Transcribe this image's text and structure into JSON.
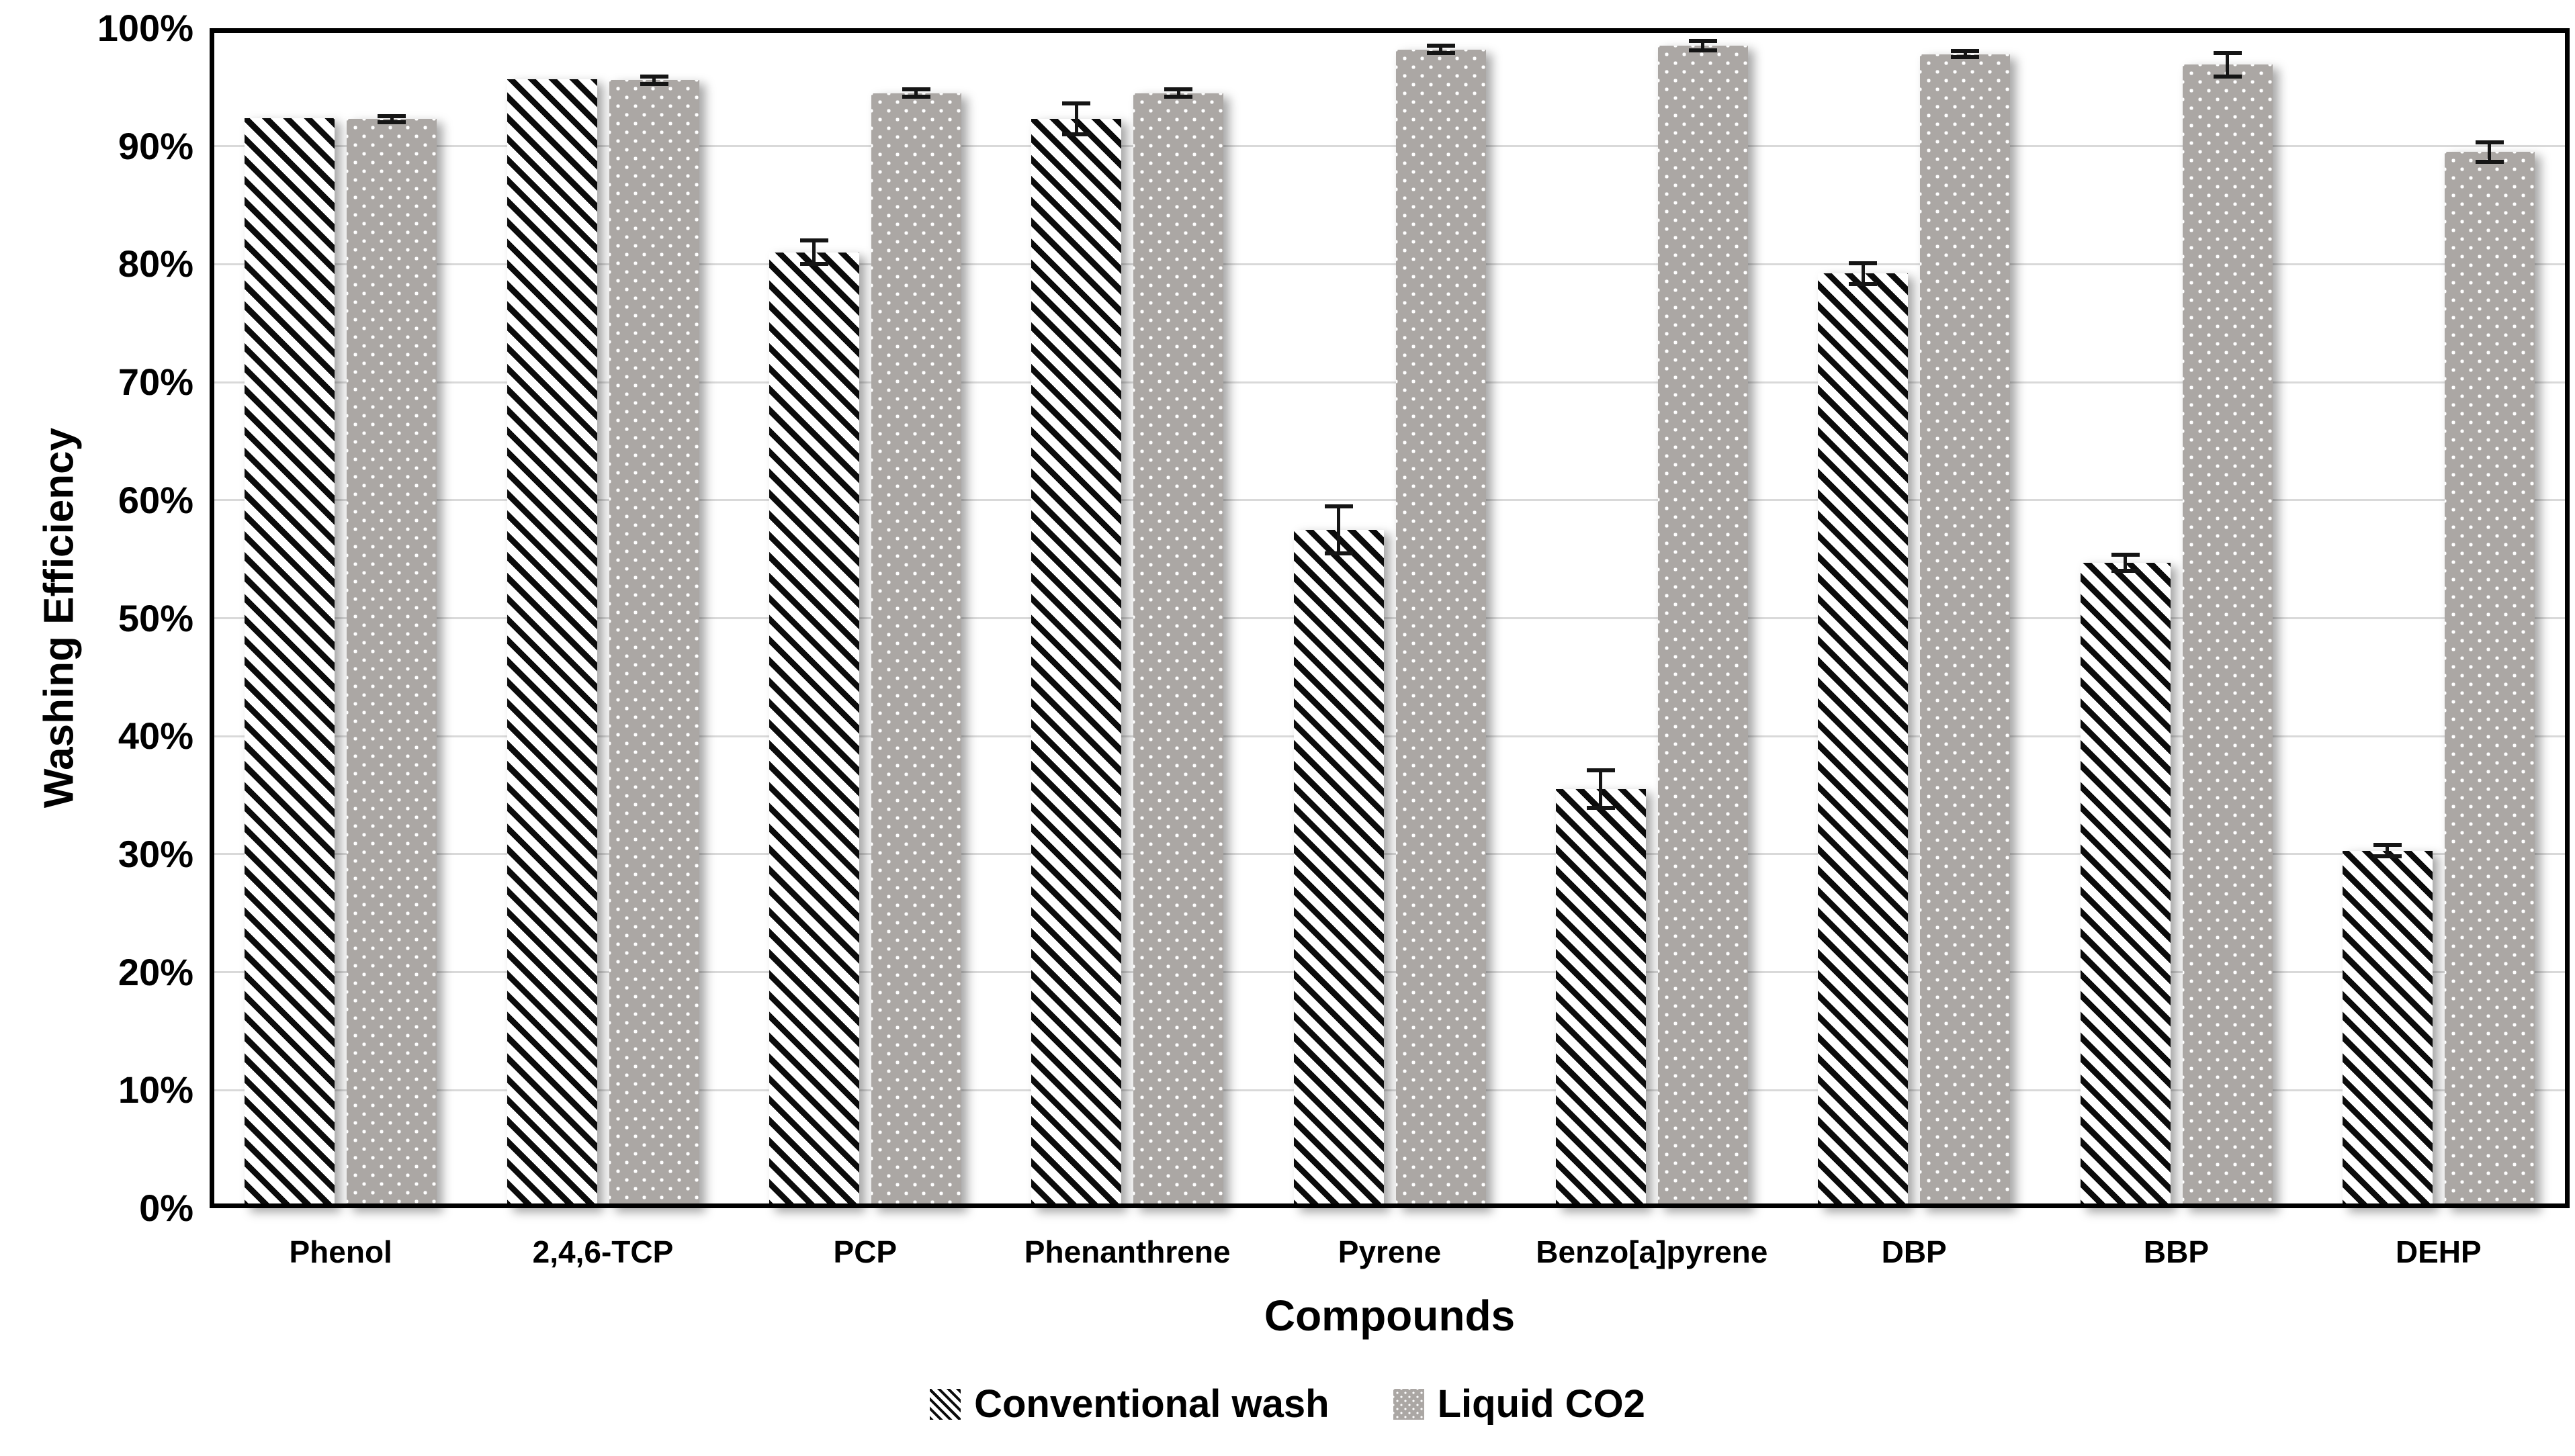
{
  "colors": {
    "background": "#ffffff",
    "bar_gray": "#aba7a4",
    "hatch_black": "#0b0b0b",
    "gridline": "#d9d9d9",
    "frame": "#000000",
    "error_bar": "#151515",
    "text": "#000000"
  },
  "chart_data": {
    "type": "bar",
    "title": "",
    "xlabel": "Compounds",
    "ylabel": "Washing Efficiency",
    "ylim": [
      0,
      100
    ],
    "grid": true,
    "legend_position": "bottom",
    "yticks": [
      "0%",
      "10%",
      "20%",
      "30%",
      "40%",
      "50%",
      "60%",
      "70%",
      "80%",
      "90%",
      "100%"
    ],
    "categories": [
      "Phenol",
      "2,4,6-TCP",
      "PCP",
      "Phenanthrene",
      "Pyrene",
      "Benzo[a]pyrene",
      "DBP",
      "BBP",
      "DEHP"
    ],
    "series": [
      {
        "name": "Conventional wash",
        "pattern": "diagonal-hatch",
        "values": [
          92.4,
          95.7,
          81.0,
          92.3,
          57.5,
          35.5,
          79.2,
          54.7,
          30.3
        ],
        "errors": [
          0,
          0,
          1.0,
          1.3,
          2.0,
          1.6,
          0.9,
          0.7,
          0.5
        ]
      },
      {
        "name": "Liquid CO2",
        "pattern": "gray-dotted",
        "values": [
          92.3,
          95.6,
          94.5,
          94.5,
          98.2,
          98.5,
          97.8,
          96.9,
          89.5
        ],
        "errors": [
          0.25,
          0.3,
          0.3,
          0.3,
          0.3,
          0.4,
          0.25,
          1.0,
          0.85
        ]
      }
    ]
  }
}
